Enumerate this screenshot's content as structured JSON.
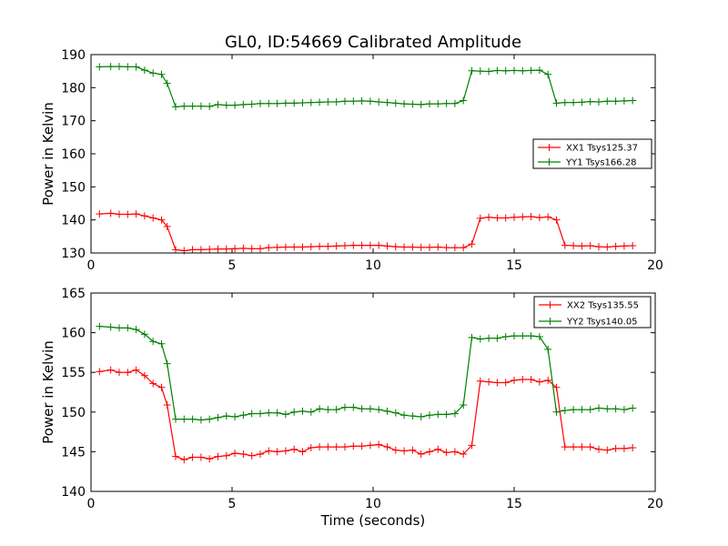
{
  "chart_data": [
    {
      "type": "line",
      "title": "GL0, ID:54669 Calibrated Amplitude",
      "xlabel": "",
      "ylabel": "Power in Kelvin",
      "xlim": [
        0,
        20
      ],
      "ylim": [
        130,
        190
      ],
      "xticks": [
        "0",
        "5",
        "10",
        "15",
        "20"
      ],
      "yticks": [
        "130",
        "140",
        "150",
        "160",
        "170",
        "180",
        "190"
      ],
      "grid": false,
      "legend_position": "center-right",
      "x": [
        0.3,
        0.7,
        1.0,
        1.3,
        1.6,
        1.9,
        2.2,
        2.5,
        2.7,
        3.0,
        3.3,
        3.6,
        3.9,
        4.2,
        4.5,
        4.8,
        5.1,
        5.4,
        5.7,
        6.0,
        6.3,
        6.6,
        6.9,
        7.2,
        7.5,
        7.8,
        8.1,
        8.4,
        8.7,
        9.0,
        9.3,
        9.6,
        9.9,
        10.2,
        10.5,
        10.8,
        11.1,
        11.4,
        11.7,
        12.0,
        12.3,
        12.6,
        12.9,
        13.2,
        13.5,
        13.8,
        14.1,
        14.4,
        14.7,
        15.0,
        15.3,
        15.6,
        15.9,
        16.2,
        16.5,
        16.8,
        17.1,
        17.4,
        17.7,
        18.0,
        18.3,
        18.6,
        18.9,
        19.2
      ],
      "series": [
        {
          "name": "XX1 Tsys125.37",
          "color": "#ff0000",
          "values": [
            141.8,
            142.0,
            141.7,
            141.7,
            141.8,
            141.2,
            140.6,
            140.0,
            138.0,
            131.0,
            130.7,
            131.0,
            131.0,
            131.1,
            131.2,
            131.2,
            131.3,
            131.4,
            131.3,
            131.3,
            131.6,
            131.7,
            131.8,
            131.8,
            131.8,
            131.9,
            132.0,
            132.0,
            132.1,
            132.2,
            132.3,
            132.3,
            132.3,
            132.3,
            132.1,
            131.9,
            131.8,
            131.8,
            131.7,
            131.7,
            131.8,
            131.6,
            131.6,
            131.6,
            132.7,
            140.5,
            140.8,
            140.6,
            140.6,
            140.8,
            140.9,
            141.0,
            140.7,
            140.9,
            140.0,
            132.3,
            132.2,
            132.1,
            132.2,
            131.9,
            131.8,
            132.0,
            132.1,
            132.2
          ]
        },
        {
          "name": "YY1 Tsys166.28",
          "color": "#008000",
          "values": [
            186.3,
            186.4,
            186.4,
            186.3,
            186.3,
            185.3,
            184.4,
            184.0,
            181.3,
            174.2,
            174.4,
            174.4,
            174.4,
            174.3,
            174.9,
            174.7,
            174.7,
            174.9,
            175.0,
            175.2,
            175.2,
            175.2,
            175.3,
            175.3,
            175.4,
            175.5,
            175.6,
            175.7,
            175.7,
            175.9,
            175.9,
            176.0,
            175.9,
            175.7,
            175.5,
            175.3,
            175.1,
            175.0,
            174.9,
            175.1,
            175.1,
            175.2,
            175.2,
            176.1,
            185.1,
            185.0,
            184.9,
            185.2,
            185.1,
            185.2,
            185.1,
            185.2,
            185.3,
            184.0,
            175.3,
            175.5,
            175.5,
            175.6,
            175.8,
            175.7,
            175.9,
            175.9,
            176.0,
            176.1
          ]
        }
      ]
    },
    {
      "type": "line",
      "title": "",
      "xlabel": "Time (seconds)",
      "ylabel": "Power in Kelvin",
      "xlim": [
        0,
        20
      ],
      "ylim": [
        140,
        165
      ],
      "xticks": [
        "0",
        "5",
        "10",
        "15",
        "20"
      ],
      "yticks": [
        "140",
        "145",
        "150",
        "155",
        "160",
        "165"
      ],
      "grid": false,
      "legend_position": "top-right",
      "x": [
        0.3,
        0.7,
        1.0,
        1.3,
        1.6,
        1.9,
        2.2,
        2.5,
        2.7,
        3.0,
        3.3,
        3.6,
        3.9,
        4.2,
        4.5,
        4.8,
        5.1,
        5.4,
        5.7,
        6.0,
        6.3,
        6.6,
        6.9,
        7.2,
        7.5,
        7.8,
        8.1,
        8.4,
        8.7,
        9.0,
        9.3,
        9.6,
        9.9,
        10.2,
        10.5,
        10.8,
        11.1,
        11.4,
        11.7,
        12.0,
        12.3,
        12.6,
        12.9,
        13.2,
        13.5,
        13.8,
        14.1,
        14.4,
        14.7,
        15.0,
        15.3,
        15.6,
        15.9,
        16.2,
        16.5,
        16.8,
        17.1,
        17.4,
        17.7,
        18.0,
        18.3,
        18.6,
        18.9,
        19.2
      ],
      "series": [
        {
          "name": "XX2 Tsys135.55",
          "color": "#ff0000",
          "values": [
            155.1,
            155.3,
            155.0,
            155.0,
            155.3,
            154.6,
            153.6,
            153.1,
            150.9,
            144.4,
            144.0,
            144.3,
            144.3,
            144.1,
            144.4,
            144.5,
            144.8,
            144.7,
            144.5,
            144.7,
            145.1,
            145.0,
            145.1,
            145.3,
            145.0,
            145.5,
            145.6,
            145.6,
            145.6,
            145.6,
            145.7,
            145.7,
            145.8,
            145.9,
            145.6,
            145.2,
            145.1,
            145.2,
            144.7,
            145.0,
            145.3,
            144.9,
            145.0,
            144.7,
            145.8,
            153.9,
            153.8,
            153.7,
            153.7,
            154.0,
            154.1,
            154.1,
            153.8,
            154.0,
            153.1,
            145.6,
            145.6,
            145.6,
            145.6,
            145.3,
            145.2,
            145.4,
            145.4,
            145.5
          ]
        },
        {
          "name": "YY2 Tsys140.05",
          "color": "#008000",
          "values": [
            160.8,
            160.7,
            160.6,
            160.6,
            160.4,
            159.8,
            158.9,
            158.6,
            156.1,
            149.1,
            149.1,
            149.1,
            149.0,
            149.1,
            149.3,
            149.5,
            149.4,
            149.6,
            149.8,
            149.8,
            149.9,
            149.9,
            149.7,
            150.0,
            150.1,
            150.0,
            150.4,
            150.3,
            150.3,
            150.6,
            150.6,
            150.4,
            150.4,
            150.3,
            150.1,
            149.9,
            149.6,
            149.5,
            149.4,
            149.6,
            149.7,
            149.7,
            149.8,
            150.9,
            159.4,
            159.2,
            159.3,
            159.3,
            159.5,
            159.6,
            159.6,
            159.6,
            159.5,
            157.9,
            150.0,
            150.2,
            150.3,
            150.3,
            150.3,
            150.5,
            150.4,
            150.4,
            150.3,
            150.5
          ]
        }
      ]
    }
  ]
}
